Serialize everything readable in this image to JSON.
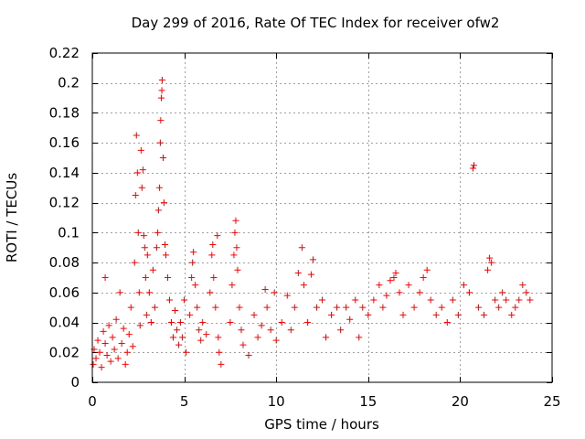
{
  "chart_data": {
    "type": "scatter",
    "title": "Day 299 of 2016, Rate Of TEC Index for receiver ofw2",
    "xlabel": "GPS time / hours",
    "ylabel": "ROTI / TECUs",
    "xlim": [
      0,
      25
    ],
    "ylim": [
      0,
      0.22
    ],
    "xticks": [
      0,
      5,
      10,
      15,
      20,
      25
    ],
    "xtick_labels": [
      "0",
      "5",
      "10",
      "15",
      "20",
      "25"
    ],
    "yticks": [
      0,
      0.02,
      0.04,
      0.06,
      0.08,
      0.1,
      0.12,
      0.14,
      0.16,
      0.18,
      0.2,
      0.22
    ],
    "ytick_labels": [
      "0",
      "0.02",
      "0.04",
      "0.06",
      "0.08",
      "0.1",
      "0.12",
      "0.14",
      "0.16",
      "0.18",
      "0.2",
      "0.22"
    ],
    "grid": true,
    "marker": "+",
    "color": "#ff0000",
    "series": [
      {
        "name": "ROTI",
        "points": [
          [
            0.05,
            0.012
          ],
          [
            0.1,
            0.022
          ],
          [
            0.2,
            0.016
          ],
          [
            0.3,
            0.028
          ],
          [
            0.4,
            0.02
          ],
          [
            0.5,
            0.01
          ],
          [
            0.6,
            0.034
          ],
          [
            0.7,
            0.07
          ],
          [
            0.7,
            0.026
          ],
          [
            0.8,
            0.018
          ],
          [
            0.9,
            0.038
          ],
          [
            1.0,
            0.014
          ],
          [
            1.1,
            0.03
          ],
          [
            1.2,
            0.022
          ],
          [
            1.3,
            0.042
          ],
          [
            1.4,
            0.016
          ],
          [
            1.5,
            0.06
          ],
          [
            1.6,
            0.026
          ],
          [
            1.7,
            0.036
          ],
          [
            1.8,
            0.012
          ],
          [
            1.9,
            0.02
          ],
          [
            2.0,
            0.032
          ],
          [
            2.1,
            0.05
          ],
          [
            2.2,
            0.024
          ],
          [
            2.3,
            0.08
          ],
          [
            2.35,
            0.125
          ],
          [
            2.4,
            0.165
          ],
          [
            2.45,
            0.14
          ],
          [
            2.5,
            0.1
          ],
          [
            2.55,
            0.06
          ],
          [
            2.6,
            0.038
          ],
          [
            2.65,
            0.155
          ],
          [
            2.7,
            0.13
          ],
          [
            2.75,
            0.142
          ],
          [
            2.8,
            0.098
          ],
          [
            2.85,
            0.09
          ],
          [
            2.9,
            0.07
          ],
          [
            2.95,
            0.045
          ],
          [
            3.0,
            0.085
          ],
          [
            3.1,
            0.06
          ],
          [
            3.2,
            0.04
          ],
          [
            3.3,
            0.075
          ],
          [
            3.4,
            0.05
          ],
          [
            3.5,
            0.09
          ],
          [
            3.55,
            0.1
          ],
          [
            3.6,
            0.115
          ],
          [
            3.65,
            0.13
          ],
          [
            3.7,
            0.16
          ],
          [
            3.72,
            0.175
          ],
          [
            3.75,
            0.19
          ],
          [
            3.78,
            0.195
          ],
          [
            3.8,
            0.202
          ],
          [
            3.85,
            0.15
          ],
          [
            3.9,
            0.12
          ],
          [
            3.95,
            0.092
          ],
          [
            4.0,
            0.085
          ],
          [
            4.1,
            0.07
          ],
          [
            4.2,
            0.055
          ],
          [
            4.3,
            0.04
          ],
          [
            4.4,
            0.03
          ],
          [
            4.5,
            0.048
          ],
          [
            4.6,
            0.035
          ],
          [
            4.7,
            0.025
          ],
          [
            4.8,
            0.04
          ],
          [
            4.9,
            0.03
          ],
          [
            5.0,
            0.055
          ],
          [
            5.1,
            0.02
          ],
          [
            5.3,
            0.045
          ],
          [
            5.4,
            0.07
          ],
          [
            5.45,
            0.08
          ],
          [
            5.5,
            0.087
          ],
          [
            5.6,
            0.065
          ],
          [
            5.7,
            0.05
          ],
          [
            5.8,
            0.035
          ],
          [
            5.9,
            0.028
          ],
          [
            6.0,
            0.04
          ],
          [
            6.2,
            0.032
          ],
          [
            6.4,
            0.06
          ],
          [
            6.5,
            0.085
          ],
          [
            6.55,
            0.092
          ],
          [
            6.6,
            0.07
          ],
          [
            6.7,
            0.05
          ],
          [
            6.8,
            0.098
          ],
          [
            6.85,
            0.03
          ],
          [
            6.9,
            0.02
          ],
          [
            7.0,
            0.012
          ],
          [
            7.5,
            0.04
          ],
          [
            7.6,
            0.065
          ],
          [
            7.7,
            0.085
          ],
          [
            7.75,
            0.1
          ],
          [
            7.8,
            0.108
          ],
          [
            7.85,
            0.09
          ],
          [
            7.9,
            0.075
          ],
          [
            8.0,
            0.05
          ],
          [
            8.1,
            0.035
          ],
          [
            8.2,
            0.025
          ],
          [
            8.5,
            0.018
          ],
          [
            8.8,
            0.045
          ],
          [
            9.0,
            0.03
          ],
          [
            9.2,
            0.038
          ],
          [
            9.4,
            0.062
          ],
          [
            9.5,
            0.05
          ],
          [
            9.7,
            0.035
          ],
          [
            9.9,
            0.06
          ],
          [
            10.0,
            0.028
          ],
          [
            10.3,
            0.04
          ],
          [
            10.6,
            0.058
          ],
          [
            10.8,
            0.035
          ],
          [
            11.0,
            0.05
          ],
          [
            11.2,
            0.073
          ],
          [
            11.4,
            0.09
          ],
          [
            11.5,
            0.065
          ],
          [
            11.7,
            0.04
          ],
          [
            11.9,
            0.072
          ],
          [
            12.0,
            0.082
          ],
          [
            12.2,
            0.05
          ],
          [
            12.5,
            0.055
          ],
          [
            12.7,
            0.03
          ],
          [
            13.0,
            0.045
          ],
          [
            13.3,
            0.05
          ],
          [
            13.5,
            0.035
          ],
          [
            13.8,
            0.05
          ],
          [
            14.0,
            0.042
          ],
          [
            14.3,
            0.055
          ],
          [
            14.5,
            0.03
          ],
          [
            14.7,
            0.05
          ],
          [
            15.0,
            0.045
          ],
          [
            15.3,
            0.055
          ],
          [
            15.6,
            0.065
          ],
          [
            15.8,
            0.05
          ],
          [
            16.0,
            0.058
          ],
          [
            16.2,
            0.068
          ],
          [
            16.4,
            0.07
          ],
          [
            16.5,
            0.073
          ],
          [
            16.7,
            0.06
          ],
          [
            16.9,
            0.045
          ],
          [
            17.2,
            0.065
          ],
          [
            17.5,
            0.05
          ],
          [
            17.8,
            0.06
          ],
          [
            18.0,
            0.07
          ],
          [
            18.2,
            0.075
          ],
          [
            18.4,
            0.055
          ],
          [
            18.7,
            0.045
          ],
          [
            19.0,
            0.05
          ],
          [
            19.3,
            0.04
          ],
          [
            19.6,
            0.055
          ],
          [
            19.9,
            0.045
          ],
          [
            20.2,
            0.065
          ],
          [
            20.5,
            0.06
          ],
          [
            20.7,
            0.143
          ],
          [
            20.75,
            0.145
          ],
          [
            21.0,
            0.05
          ],
          [
            21.3,
            0.045
          ],
          [
            21.5,
            0.075
          ],
          [
            21.6,
            0.083
          ],
          [
            21.7,
            0.08
          ],
          [
            21.9,
            0.055
          ],
          [
            22.1,
            0.05
          ],
          [
            22.3,
            0.06
          ],
          [
            22.5,
            0.055
          ],
          [
            22.8,
            0.045
          ],
          [
            23.0,
            0.05
          ],
          [
            23.2,
            0.055
          ],
          [
            23.4,
            0.065
          ],
          [
            23.6,
            0.06
          ],
          [
            23.8,
            0.055
          ]
        ]
      }
    ]
  }
}
